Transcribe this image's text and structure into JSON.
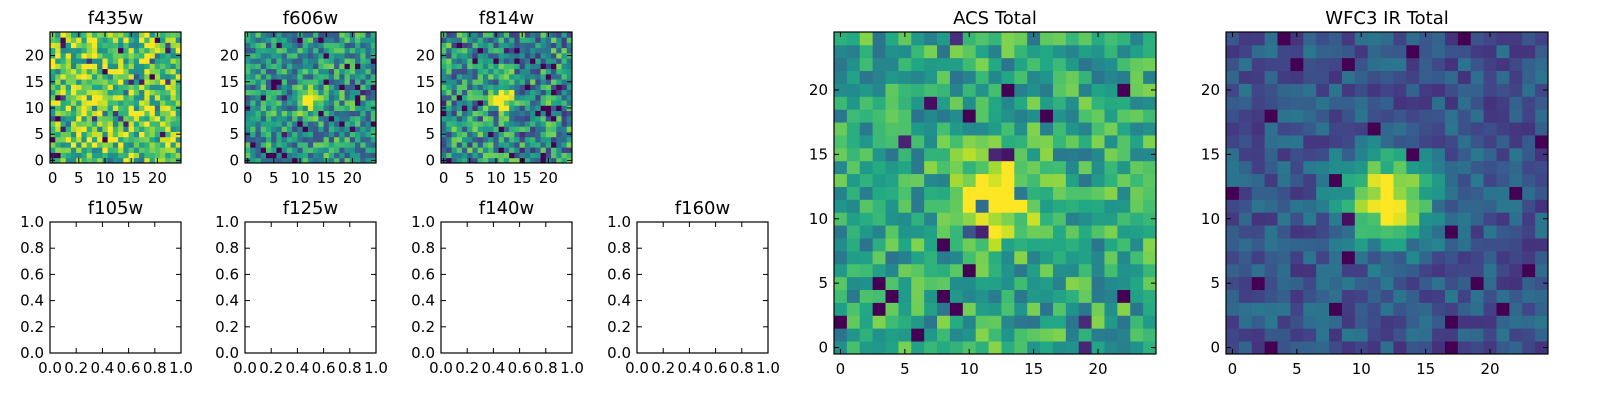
{
  "figure": {
    "colormap": "viridis",
    "background": "#ffffff"
  },
  "chart_data": [
    {
      "type": "heatmap",
      "title": "f435w",
      "xticks": [
        "0",
        "5",
        "10",
        "15",
        "20"
      ],
      "yticks": [
        "0",
        "5",
        "10",
        "15",
        "20"
      ],
      "grid_size": 25,
      "source_center": null,
      "intensity": "noise-dominated, no visible source",
      "grid": false
    },
    {
      "type": "heatmap",
      "title": "f606w",
      "xticks": [
        "0",
        "5",
        "10",
        "15",
        "20"
      ],
      "yticks": [
        "0",
        "5",
        "10",
        "15",
        "20"
      ],
      "grid_size": 25,
      "source_center": [
        12,
        12
      ],
      "grid": false
    },
    {
      "type": "heatmap",
      "title": "f814w",
      "xticks": [
        "0",
        "5",
        "10",
        "15",
        "20"
      ],
      "yticks": [
        "0",
        "5",
        "10",
        "15",
        "20"
      ],
      "grid_size": 25,
      "source_center": [
        12,
        12
      ],
      "grid": false
    },
    {
      "type": "empty",
      "title": "f105w",
      "xticks": [
        "0.0",
        "0.2",
        "0.4",
        "0.6",
        "0.8",
        "1.0"
      ],
      "yticks": [
        "0.0",
        "0.2",
        "0.4",
        "0.6",
        "0.8",
        "1.0"
      ],
      "xlim": [
        0,
        1
      ],
      "ylim": [
        0,
        1
      ]
    },
    {
      "type": "empty",
      "title": "f125w",
      "xticks": [
        "0.0",
        "0.2",
        "0.4",
        "0.6",
        "0.8",
        "1.0"
      ],
      "yticks": [
        "0.0",
        "0.2",
        "0.4",
        "0.6",
        "0.8",
        "1.0"
      ],
      "xlim": [
        0,
        1
      ],
      "ylim": [
        0,
        1
      ]
    },
    {
      "type": "empty",
      "title": "f140w",
      "xticks": [
        "0.0",
        "0.2",
        "0.4",
        "0.6",
        "0.8",
        "1.0"
      ],
      "yticks": [
        "0.0",
        "0.2",
        "0.4",
        "0.6",
        "0.8",
        "1.0"
      ],
      "xlim": [
        0,
        1
      ],
      "ylim": [
        0,
        1
      ]
    },
    {
      "type": "empty",
      "title": "f160w",
      "xticks": [
        "0.0",
        "0.2",
        "0.4",
        "0.6",
        "0.8",
        "1.0"
      ],
      "yticks": [
        "0.0",
        "0.2",
        "0.4",
        "0.6",
        "0.8",
        "1.0"
      ],
      "xlim": [
        0,
        1
      ],
      "ylim": [
        0,
        1
      ]
    },
    {
      "type": "heatmap",
      "title": "ACS Total",
      "xticks": [
        "0",
        "5",
        "10",
        "15",
        "20"
      ],
      "yticks": [
        "0",
        "5",
        "10",
        "15",
        "20"
      ],
      "grid_size": 25,
      "source_center": [
        12.5,
        12
      ],
      "grid": false
    },
    {
      "type": "heatmap",
      "title": "WFC3 IR Total",
      "xticks": [
        "0",
        "5",
        "10",
        "15",
        "20"
      ],
      "yticks": [
        "0",
        "5",
        "10",
        "15",
        "20"
      ],
      "grid_size": 25,
      "source_center": [
        12.5,
        12
      ],
      "grid": false
    }
  ]
}
